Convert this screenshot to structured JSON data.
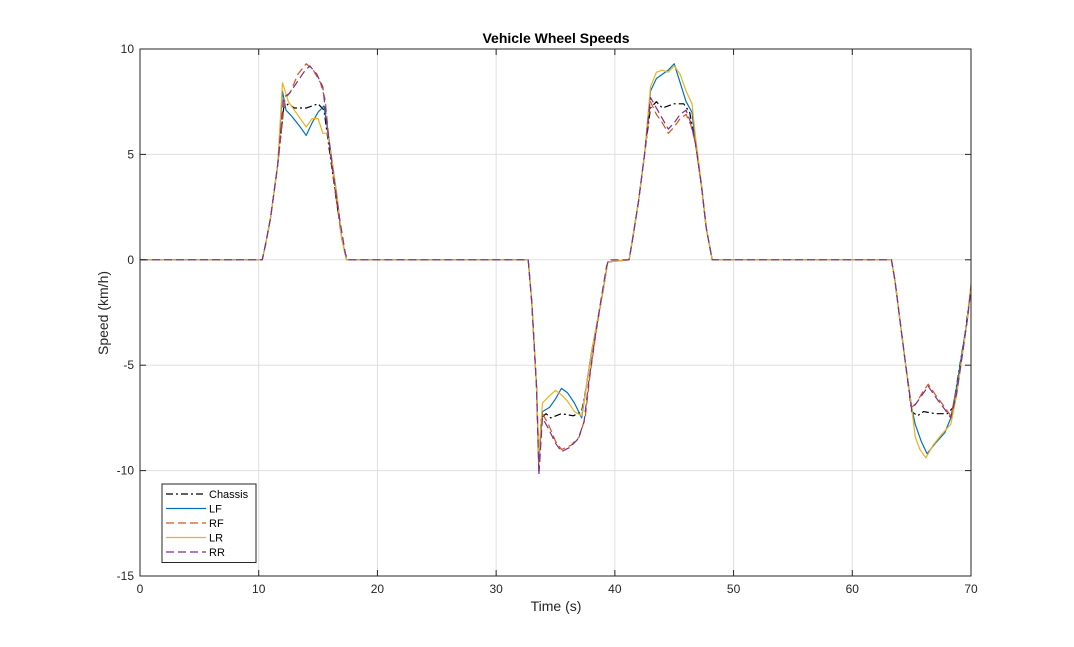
{
  "chart_data": {
    "type": "line",
    "title": "Vehicle Wheel Speeds",
    "xlabel": "Time (s)",
    "ylabel": "Speed (km/h)",
    "xlim": [
      0,
      70
    ],
    "ylim": [
      -15,
      10
    ],
    "xticks": [
      0,
      10,
      20,
      30,
      40,
      50,
      60,
      70
    ],
    "yticks": [
      -15,
      -10,
      -5,
      0,
      5,
      10
    ],
    "grid": true,
    "legend_position": "bottom-left",
    "series": [
      {
        "name": "Chassis",
        "color": "#000000",
        "dash": "dashdot",
        "points": [
          [
            0,
            0
          ],
          [
            10.3,
            0
          ],
          [
            10.6,
            0.8
          ],
          [
            11,
            2
          ],
          [
            11.6,
            4.5
          ],
          [
            12.1,
            7.2
          ],
          [
            12.5,
            7.4
          ],
          [
            13,
            7.2
          ],
          [
            14,
            7.2
          ],
          [
            15,
            7.4
          ],
          [
            15.5,
            7.1
          ],
          [
            16,
            5
          ],
          [
            16.5,
            3
          ],
          [
            17,
            1
          ],
          [
            17.4,
            0
          ],
          [
            32.7,
            0
          ],
          [
            33,
            -2
          ],
          [
            33.4,
            -6
          ],
          [
            33.6,
            -9.5
          ],
          [
            33.8,
            -7.5
          ],
          [
            34.2,
            -7.3
          ],
          [
            34.6,
            -7.5
          ],
          [
            35.5,
            -7.3
          ],
          [
            36.5,
            -7.4
          ],
          [
            37.2,
            -7.2
          ],
          [
            37.6,
            -6
          ],
          [
            38,
            -4.5
          ],
          [
            38.5,
            -3
          ],
          [
            39,
            -1.5
          ],
          [
            39.4,
            -0.1
          ],
          [
            41.2,
            0
          ],
          [
            41.5,
            1
          ],
          [
            42,
            2.8
          ],
          [
            42.5,
            5
          ],
          [
            43,
            7.2
          ],
          [
            43.5,
            7.5
          ],
          [
            44,
            7.2
          ],
          [
            45,
            7.4
          ],
          [
            45.8,
            7.4
          ],
          [
            46.3,
            7
          ],
          [
            46.8,
            5.5
          ],
          [
            47.3,
            3.5
          ],
          [
            47.7,
            1.5
          ],
          [
            48.2,
            0
          ],
          [
            63.3,
            0
          ],
          [
            63.6,
            -1
          ],
          [
            64,
            -2.8
          ],
          [
            64.5,
            -5
          ],
          [
            65,
            -7.2
          ],
          [
            65.5,
            -7.4
          ],
          [
            66,
            -7.2
          ],
          [
            67,
            -7.3
          ],
          [
            68,
            -7.3
          ],
          [
            68.5,
            -7
          ],
          [
            69,
            -5.2
          ],
          [
            69.5,
            -3.5
          ],
          [
            70,
            -1.3
          ]
        ]
      },
      {
        "name": "LF",
        "color": "#0072BD",
        "dash": "solid",
        "points": [
          [
            0,
            0
          ],
          [
            10.3,
            0
          ],
          [
            10.6,
            0.8
          ],
          [
            11,
            2
          ],
          [
            11.6,
            4.5
          ],
          [
            12,
            8
          ],
          [
            12.3,
            7.1
          ],
          [
            12.8,
            6.8
          ],
          [
            13.5,
            6.3
          ],
          [
            14,
            5.9
          ],
          [
            14.5,
            6.5
          ],
          [
            15,
            7
          ],
          [
            15.5,
            7.3
          ],
          [
            15.8,
            6.2
          ],
          [
            16.2,
            4.6
          ],
          [
            16.6,
            3
          ],
          [
            17,
            1
          ],
          [
            17.4,
            0
          ],
          [
            32.7,
            0
          ],
          [
            33,
            -2
          ],
          [
            33.4,
            -6
          ],
          [
            33.6,
            -9.6
          ],
          [
            33.9,
            -7.2
          ],
          [
            34.5,
            -7
          ],
          [
            35,
            -6.6
          ],
          [
            35.5,
            -6.1
          ],
          [
            36,
            -6.3
          ],
          [
            36.6,
            -6.8
          ],
          [
            37.2,
            -7.5
          ],
          [
            37.6,
            -6
          ],
          [
            38,
            -4.5
          ],
          [
            38.5,
            -3
          ],
          [
            39,
            -1.5
          ],
          [
            39.4,
            -0.1
          ],
          [
            41.2,
            0
          ],
          [
            41.5,
            1
          ],
          [
            42,
            2.8
          ],
          [
            42.5,
            5
          ],
          [
            43,
            8
          ],
          [
            43.5,
            8.6
          ],
          [
            44,
            8.8
          ],
          [
            44.5,
            9
          ],
          [
            45,
            9.3
          ],
          [
            45.5,
            8.4
          ],
          [
            46,
            7.5
          ],
          [
            46.5,
            7
          ],
          [
            46.8,
            5.5
          ],
          [
            47.3,
            3.5
          ],
          [
            47.7,
            1.5
          ],
          [
            48.2,
            0
          ],
          [
            63.3,
            0
          ],
          [
            63.6,
            -1
          ],
          [
            64,
            -2.8
          ],
          [
            64.5,
            -5
          ],
          [
            65,
            -7
          ],
          [
            65.3,
            -7.8
          ],
          [
            65.8,
            -8.6
          ],
          [
            66.3,
            -9.2
          ],
          [
            67,
            -8.7
          ],
          [
            67.8,
            -8.2
          ],
          [
            68.3,
            -7.5
          ],
          [
            68.8,
            -6
          ],
          [
            69.3,
            -4.2
          ],
          [
            69.7,
            -2.8
          ],
          [
            70,
            -1.2
          ]
        ]
      },
      {
        "name": "RF",
        "color": "#D95319",
        "dash": "dashed",
        "points": [
          [
            0,
            0
          ],
          [
            10.3,
            0
          ],
          [
            10.6,
            0.8
          ],
          [
            11,
            2
          ],
          [
            11.6,
            4.5
          ],
          [
            12.2,
            7.6
          ],
          [
            12.7,
            8
          ],
          [
            13.3,
            8.8
          ],
          [
            14,
            9.3
          ],
          [
            14.6,
            9
          ],
          [
            15.2,
            8.4
          ],
          [
            15.6,
            7.6
          ],
          [
            16,
            5.2
          ],
          [
            16.5,
            3
          ],
          [
            17,
            1
          ],
          [
            17.4,
            0
          ],
          [
            32.7,
            0
          ],
          [
            33,
            -2
          ],
          [
            33.4,
            -6
          ],
          [
            33.6,
            -10.1
          ],
          [
            33.9,
            -7.3
          ],
          [
            34.4,
            -7.8
          ],
          [
            35,
            -8.6
          ],
          [
            35.5,
            -9
          ],
          [
            36.3,
            -8.8
          ],
          [
            37,
            -8.4
          ],
          [
            37.5,
            -7.5
          ],
          [
            37.9,
            -5.5
          ],
          [
            38.4,
            -3.5
          ],
          [
            38.9,
            -1.8
          ],
          [
            39.4,
            -0.1
          ],
          [
            41.2,
            0
          ],
          [
            41.5,
            1
          ],
          [
            42,
            2.8
          ],
          [
            42.5,
            5
          ],
          [
            43,
            7.5
          ],
          [
            43.5,
            6.9
          ],
          [
            44,
            6.5
          ],
          [
            44.5,
            6
          ],
          [
            45,
            6.3
          ],
          [
            45.5,
            6.7
          ],
          [
            46,
            6.9
          ],
          [
            46.4,
            6.4
          ],
          [
            46.8,
            5.5
          ],
          [
            47.3,
            3.5
          ],
          [
            47.7,
            1.5
          ],
          [
            48.2,
            0
          ],
          [
            63.3,
            0
          ],
          [
            63.6,
            -1
          ],
          [
            64,
            -2.8
          ],
          [
            64.5,
            -5
          ],
          [
            65,
            -7
          ],
          [
            65.4,
            -6.8
          ],
          [
            65.9,
            -6.3
          ],
          [
            66.4,
            -5.9
          ],
          [
            67,
            -6.4
          ],
          [
            67.8,
            -7
          ],
          [
            68.3,
            -7.4
          ],
          [
            68.8,
            -6.2
          ],
          [
            69.3,
            -4.4
          ],
          [
            69.7,
            -2.8
          ],
          [
            70,
            -1.4
          ]
        ]
      },
      {
        "name": "LR",
        "color": "#EDB120",
        "dash": "solid",
        "points": [
          [
            0,
            0
          ],
          [
            10.3,
            0
          ],
          [
            10.6,
            0.8
          ],
          [
            11,
            2
          ],
          [
            11.6,
            4.5
          ],
          [
            12,
            8.4
          ],
          [
            12.5,
            7.5
          ],
          [
            13,
            7.1
          ],
          [
            13.5,
            6.7
          ],
          [
            14,
            6.3
          ],
          [
            14.5,
            6.7
          ],
          [
            15,
            6.7
          ],
          [
            15.4,
            6
          ],
          [
            15.8,
            6
          ],
          [
            16.2,
            4.6
          ],
          [
            16.6,
            3
          ],
          [
            17,
            1
          ],
          [
            17.4,
            0
          ],
          [
            32.7,
            0
          ],
          [
            33,
            -2
          ],
          [
            33.4,
            -6
          ],
          [
            33.6,
            -9.2
          ],
          [
            33.9,
            -6.8
          ],
          [
            34.4,
            -6.5
          ],
          [
            35,
            -6.2
          ],
          [
            35.5,
            -6.4
          ],
          [
            36,
            -6.7
          ],
          [
            36.6,
            -7.2
          ],
          [
            37.2,
            -7.4
          ],
          [
            37.6,
            -6
          ],
          [
            38,
            -4.5
          ],
          [
            38.5,
            -3
          ],
          [
            39,
            -1.5
          ],
          [
            39.4,
            -0.1
          ],
          [
            41.2,
            0
          ],
          [
            41.5,
            1
          ],
          [
            42,
            2.8
          ],
          [
            42.5,
            5
          ],
          [
            43,
            8.2
          ],
          [
            43.5,
            8.9
          ],
          [
            44,
            9
          ],
          [
            44.5,
            8.9
          ],
          [
            45,
            9.2
          ],
          [
            45.5,
            8.8
          ],
          [
            46,
            8
          ],
          [
            46.5,
            7.4
          ],
          [
            46.8,
            5.8
          ],
          [
            47.3,
            3.6
          ],
          [
            47.7,
            1.5
          ],
          [
            48.2,
            0
          ],
          [
            63.3,
            0
          ],
          [
            63.6,
            -1
          ],
          [
            64,
            -2.8
          ],
          [
            64.5,
            -5
          ],
          [
            65,
            -7
          ],
          [
            65.3,
            -8.4
          ],
          [
            65.7,
            -9
          ],
          [
            66.2,
            -9.4
          ],
          [
            66.8,
            -8.8
          ],
          [
            67.5,
            -8.3
          ],
          [
            68.3,
            -7.8
          ],
          [
            68.8,
            -6.4
          ],
          [
            69.3,
            -4.4
          ],
          [
            69.7,
            -2.8
          ],
          [
            70,
            -1.1
          ]
        ]
      },
      {
        "name": "RR",
        "color": "#7E2F8E",
        "dash": "dashed",
        "points": [
          [
            0,
            0
          ],
          [
            10.3,
            0
          ],
          [
            10.6,
            0.8
          ],
          [
            11,
            2
          ],
          [
            11.6,
            4.5
          ],
          [
            12.1,
            7.7
          ],
          [
            12.6,
            7.9
          ],
          [
            13.2,
            8.4
          ],
          [
            13.8,
            8.9
          ],
          [
            14.3,
            9.2
          ],
          [
            14.9,
            8.8
          ],
          [
            15.4,
            8.2
          ],
          [
            15.8,
            6.2
          ],
          [
            16.3,
            4
          ],
          [
            16.8,
            2
          ],
          [
            17.3,
            0.3
          ],
          [
            17.5,
            0
          ],
          [
            32.7,
            0
          ],
          [
            33,
            -2
          ],
          [
            33.4,
            -6
          ],
          [
            33.6,
            -10.2
          ],
          [
            33.9,
            -7.5
          ],
          [
            34.4,
            -8
          ],
          [
            35,
            -8.7
          ],
          [
            35.5,
            -9.1
          ],
          [
            36.2,
            -8.9
          ],
          [
            36.9,
            -8.5
          ],
          [
            37.4,
            -7.7
          ],
          [
            37.8,
            -5.8
          ],
          [
            38.3,
            -3.8
          ],
          [
            38.8,
            -2
          ],
          [
            39.3,
            -0.3
          ],
          [
            39.5,
            0
          ],
          [
            41.2,
            0
          ],
          [
            41.5,
            1
          ],
          [
            42,
            2.8
          ],
          [
            42.5,
            5
          ],
          [
            43,
            7.7
          ],
          [
            43.5,
            7.2
          ],
          [
            44,
            6.7
          ],
          [
            44.5,
            6.2
          ],
          [
            45,
            6.5
          ],
          [
            45.5,
            6.9
          ],
          [
            46,
            7.1
          ],
          [
            46.4,
            6.5
          ],
          [
            46.8,
            5.5
          ],
          [
            47.3,
            3.5
          ],
          [
            47.7,
            1.5
          ],
          [
            48.2,
            0
          ],
          [
            63.3,
            0
          ],
          [
            63.6,
            -1
          ],
          [
            64,
            -2.8
          ],
          [
            64.5,
            -5
          ],
          [
            65,
            -7.1
          ],
          [
            65.4,
            -6.8
          ],
          [
            65.9,
            -6.4
          ],
          [
            66.4,
            -6
          ],
          [
            67,
            -6.5
          ],
          [
            67.8,
            -7.1
          ],
          [
            68.3,
            -7.5
          ],
          [
            68.8,
            -6.3
          ],
          [
            69.3,
            -4.4
          ],
          [
            69.7,
            -2.8
          ],
          [
            70,
            -1.3
          ]
        ]
      }
    ]
  }
}
